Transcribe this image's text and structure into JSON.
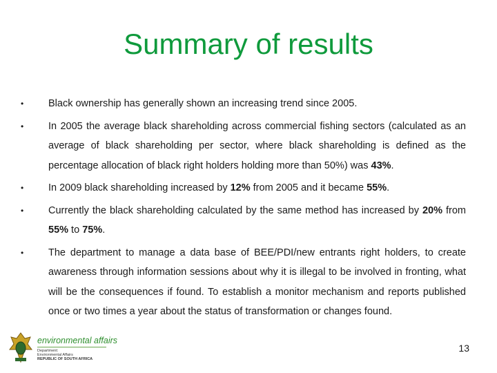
{
  "slide": {
    "title": "Summary of results",
    "page_number": "13",
    "logo": {
      "brand": "environmental affairs",
      "line1": "Department:",
      "line2": "Environmental Affairs",
      "line3": "REPUBLIC OF SOUTH AFRICA"
    },
    "colors": {
      "title": "#0f9a3c",
      "logo_green": "#2f8f2f"
    },
    "bullets": [
      {
        "parts": [
          "Black ownership has generally shown an increasing trend since 2005."
        ]
      },
      {
        "parts": [
          "In 2005 the average black shareholding across commercial fishing sectors (calculated as an average of black shareholding per sector, where black shareholding is defined as the percentage allocation of black right holders holding more than 50%) was ",
          "43%",
          "."
        ]
      },
      {
        "parts": [
          "In 2009 black shareholding increased by ",
          "12%",
          " from 2005 and it became ",
          "55%",
          "."
        ]
      },
      {
        "parts": [
          "Currently the black shareholding calculated by the same method has increased by ",
          "20%",
          " from ",
          "55%",
          " to ",
          "75%",
          "."
        ]
      },
      {
        "parts": [
          "The department to manage a data base of BEE/PDI/new entrants right holders, to create awareness through information sessions about why it is illegal to be involved in fronting, what will be the consequences if found. To establish a monitor mechanism and reports published once or two times a year about the status of transformation or changes found."
        ]
      }
    ]
  }
}
